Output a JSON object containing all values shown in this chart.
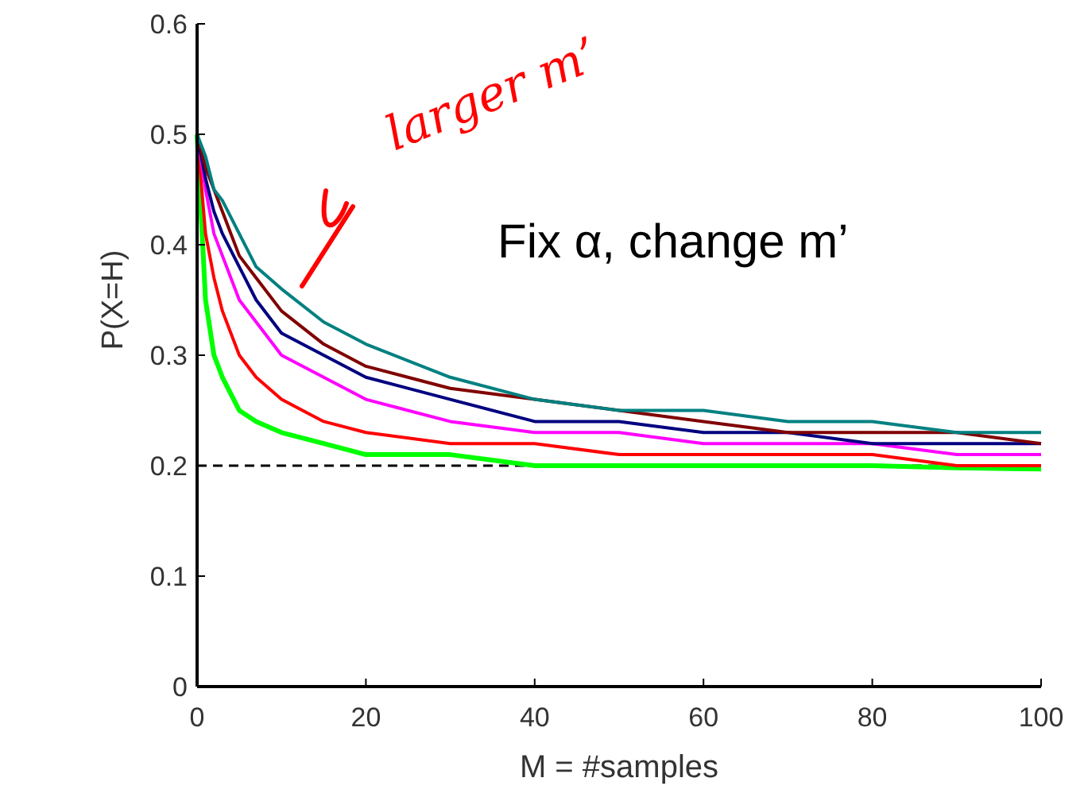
{
  "chart_data": {
    "type": "line",
    "xlabel": "M = #samples",
    "ylabel": "P(X=H)",
    "x": [
      0,
      1,
      2,
      3,
      5,
      7,
      10,
      15,
      20,
      30,
      40,
      50,
      60,
      70,
      80,
      90,
      100
    ],
    "xlim": [
      0,
      100
    ],
    "xticks": [
      0,
      20,
      40,
      60,
      80,
      100
    ],
    "ylim": [
      0,
      0.6
    ],
    "yticks": [
      0,
      0.1,
      0.2,
      0.3,
      0.4,
      0.5,
      0.6
    ],
    "grid": false,
    "marker": "none",
    "line_style": "solid",
    "series": [
      {
        "color": "#00ff00",
        "values": [
          0.5,
          0.35,
          0.3,
          0.28,
          0.25,
          0.24,
          0.23,
          0.22,
          0.21,
          0.21,
          0.2,
          0.2,
          0.2,
          0.2,
          0.2,
          0.198,
          0.197
        ]
      },
      {
        "color": "#ff0000",
        "values": [
          0.5,
          0.41,
          0.37,
          0.34,
          0.3,
          0.28,
          0.26,
          0.24,
          0.23,
          0.22,
          0.22,
          0.21,
          0.21,
          0.21,
          0.21,
          0.2,
          0.2
        ]
      },
      {
        "color": "#ff00ff",
        "values": [
          0.5,
          0.45,
          0.41,
          0.39,
          0.35,
          0.33,
          0.3,
          0.28,
          0.26,
          0.24,
          0.23,
          0.23,
          0.22,
          0.22,
          0.22,
          0.21,
          0.21
        ]
      },
      {
        "color": "#000080",
        "values": [
          0.5,
          0.46,
          0.43,
          0.41,
          0.38,
          0.35,
          0.32,
          0.3,
          0.28,
          0.26,
          0.24,
          0.24,
          0.23,
          0.23,
          0.22,
          0.22,
          0.22
        ]
      },
      {
        "color": "#800000",
        "values": [
          0.5,
          0.47,
          0.45,
          0.43,
          0.39,
          0.37,
          0.34,
          0.31,
          0.29,
          0.27,
          0.26,
          0.25,
          0.24,
          0.23,
          0.23,
          0.23,
          0.22
        ]
      },
      {
        "color": "#008080",
        "values": [
          0.5,
          0.48,
          0.45,
          0.44,
          0.41,
          0.38,
          0.36,
          0.33,
          0.31,
          0.28,
          0.26,
          0.25,
          0.25,
          0.24,
          0.24,
          0.23,
          0.23
        ]
      }
    ],
    "ref_lines": [
      {
        "axis": "y",
        "value": 0.2,
        "color": "#000000",
        "line_style": "dashed"
      }
    ],
    "annotations": [
      "larger m’",
      "Fix α, change m’"
    ]
  }
}
